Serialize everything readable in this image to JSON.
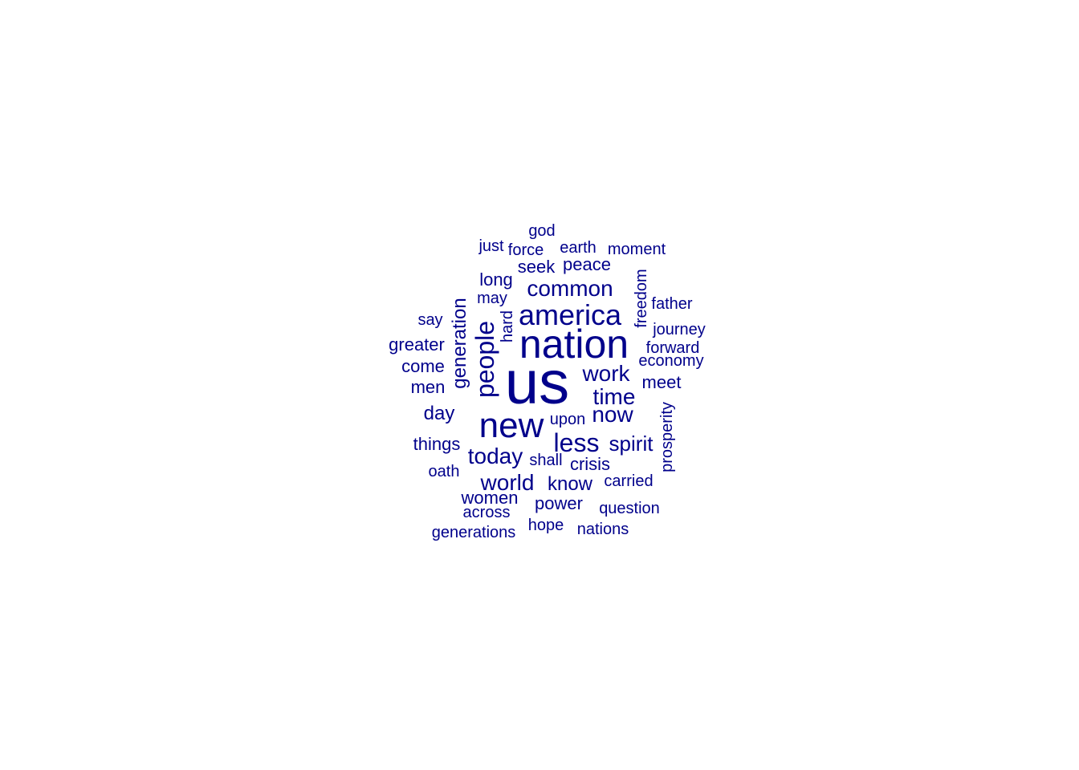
{
  "colors": {
    "background": "#ffffff",
    "word": "#00008b"
  },
  "words": [
    {
      "id": "us",
      "text": "us"
    },
    {
      "id": "nation",
      "text": "nation"
    },
    {
      "id": "new",
      "text": "new"
    },
    {
      "id": "america",
      "text": "america"
    },
    {
      "id": "people",
      "text": "people"
    },
    {
      "id": "less",
      "text": "less"
    },
    {
      "id": "common",
      "text": "common"
    },
    {
      "id": "today",
      "text": "today"
    },
    {
      "id": "work",
      "text": "work"
    },
    {
      "id": "time",
      "text": "time"
    },
    {
      "id": "now",
      "text": "now"
    },
    {
      "id": "spirit",
      "text": "spirit"
    },
    {
      "id": "world",
      "text": "world"
    },
    {
      "id": "generation",
      "text": "generation"
    },
    {
      "id": "know",
      "text": "know"
    },
    {
      "id": "power",
      "text": "power"
    },
    {
      "id": "women",
      "text": "women"
    },
    {
      "id": "meet",
      "text": "meet"
    },
    {
      "id": "day",
      "text": "day"
    },
    {
      "id": "things",
      "text": "things"
    },
    {
      "id": "greater",
      "text": "greater"
    },
    {
      "id": "come",
      "text": "come"
    },
    {
      "id": "men",
      "text": "men"
    },
    {
      "id": "long",
      "text": "long"
    },
    {
      "id": "seek",
      "text": "seek"
    },
    {
      "id": "peace",
      "text": "peace"
    },
    {
      "id": "crisis",
      "text": "crisis"
    },
    {
      "id": "moment",
      "text": "moment"
    },
    {
      "id": "earth",
      "text": "earth"
    },
    {
      "id": "force",
      "text": "force"
    },
    {
      "id": "god",
      "text": "god"
    },
    {
      "id": "just",
      "text": "just"
    },
    {
      "id": "may",
      "text": "may"
    },
    {
      "id": "hard",
      "text": "hard"
    },
    {
      "id": "say",
      "text": "say"
    },
    {
      "id": "freedom",
      "text": "freedom"
    },
    {
      "id": "father",
      "text": "father"
    },
    {
      "id": "journey",
      "text": "journey"
    },
    {
      "id": "forward",
      "text": "forward"
    },
    {
      "id": "economy",
      "text": "economy"
    },
    {
      "id": "prosperity",
      "text": "prosperity"
    },
    {
      "id": "upon",
      "text": "upon"
    },
    {
      "id": "shall",
      "text": "shall"
    },
    {
      "id": "carried",
      "text": "carried"
    },
    {
      "id": "oath",
      "text": "oath"
    },
    {
      "id": "across",
      "text": "across"
    },
    {
      "id": "question",
      "text": "question"
    },
    {
      "id": "hope",
      "text": "hope"
    },
    {
      "id": "nations",
      "text": "nations"
    },
    {
      "id": "generations",
      "text": "generations"
    }
  ]
}
